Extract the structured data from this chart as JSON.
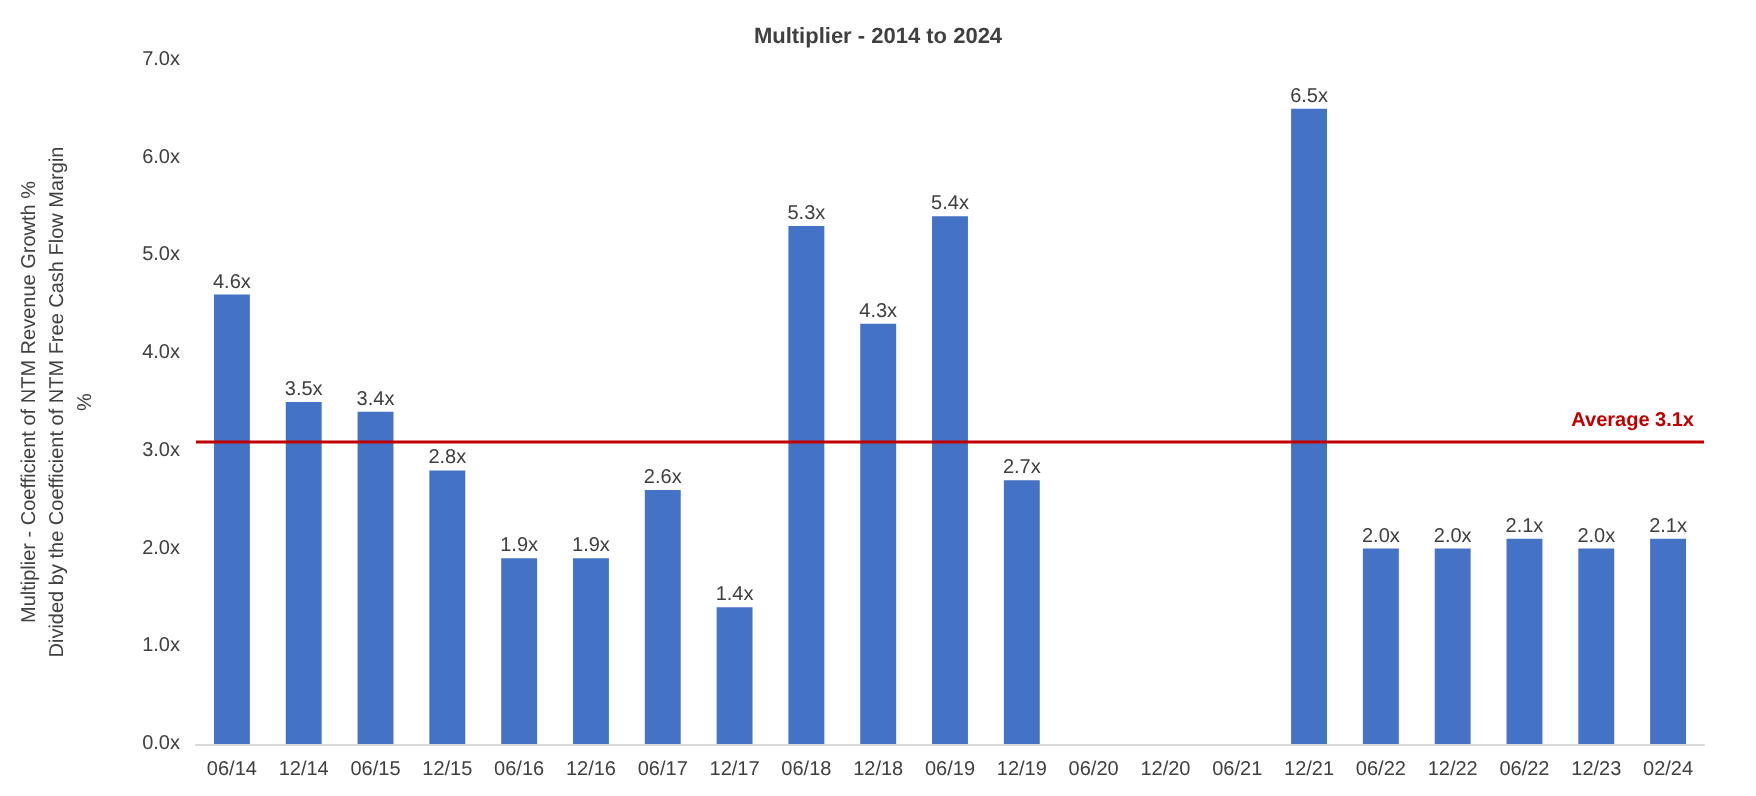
{
  "chart_data": {
    "type": "bar",
    "title": "Multiplier - 2014 to 2024",
    "ylabel": "Multiplier - Coefficient of NTM Revenue Growth % Divided by the Coefficient of NTM Free Cash Flow Margin %",
    "categories": [
      "06/14",
      "12/14",
      "06/15",
      "12/15",
      "06/16",
      "12/16",
      "06/17",
      "12/17",
      "06/18",
      "12/18",
      "06/19",
      "12/19",
      "06/20",
      "12/20",
      "06/21",
      "12/21",
      "06/22",
      "12/22",
      "06/22",
      "12/23",
      "02/24"
    ],
    "values": [
      4.6,
      3.5,
      3.4,
      2.8,
      1.9,
      1.9,
      2.6,
      1.4,
      5.3,
      4.3,
      5.4,
      2.7,
      null,
      null,
      null,
      6.5,
      2.0,
      2.0,
      2.1,
      2.0,
      2.1
    ],
    "value_labels": [
      "4.6x",
      "3.5x",
      "3.4x",
      "2.8x",
      "1.9x",
      "1.9x",
      "2.6x",
      "1.4x",
      "5.3x",
      "4.3x",
      "5.4x",
      "2.7x",
      null,
      null,
      null,
      "6.5x",
      "2.0x",
      "2.0x",
      "2.1x",
      "2.0x",
      "2.1x"
    ],
    "color": "#4472c4",
    "ylim": [
      0,
      7
    ],
    "yticks": [
      {
        "value": 0,
        "label": "0.0x"
      },
      {
        "value": 1,
        "label": "1.0x"
      },
      {
        "value": 2,
        "label": "2.0x"
      },
      {
        "value": 3,
        "label": "3.0x"
      },
      {
        "value": 4,
        "label": "4.0x"
      },
      {
        "value": 5,
        "label": "5.0x"
      },
      {
        "value": 6,
        "label": "6.0x"
      },
      {
        "value": 7,
        "label": "7.0x"
      }
    ],
    "ref_lines": [
      {
        "axis": "y",
        "value": 3.1,
        "label": "Average 3.1x",
        "color": "#c00000"
      }
    ],
    "grid": false
  }
}
